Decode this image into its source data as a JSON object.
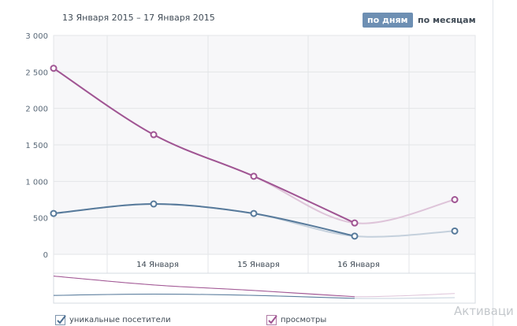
{
  "header": {
    "date_range": "13 Января 2015 – 17 Января 2015",
    "toggle_days": "по дням",
    "toggle_months": "по месяцам"
  },
  "chart_data": {
    "type": "line",
    "categories": [
      "13 Января",
      "14 Января",
      "15 Января",
      "16 Января",
      "17 Января"
    ],
    "x_tick_labels": [
      "14 Января",
      "15 Января",
      "16 Января"
    ],
    "y_tick_labels": [
      "3 000",
      "2 500",
      "2 000",
      "1 500",
      "1 000",
      "500",
      "0"
    ],
    "ylim": [
      0,
      3000
    ],
    "series": [
      {
        "name": "просмотры",
        "color": "#a05593",
        "values": [
          2550,
          1640,
          1070,
          430,
          750
        ]
      },
      {
        "name": "уникальные посетители",
        "color": "#577a9b",
        "values": [
          560,
          690,
          560,
          250,
          320
        ]
      }
    ]
  },
  "legend": {
    "visitors_label": "уникальные посетители",
    "views_label": "просмотры"
  },
  "watermark": {
    "text": "Активаци"
  }
}
